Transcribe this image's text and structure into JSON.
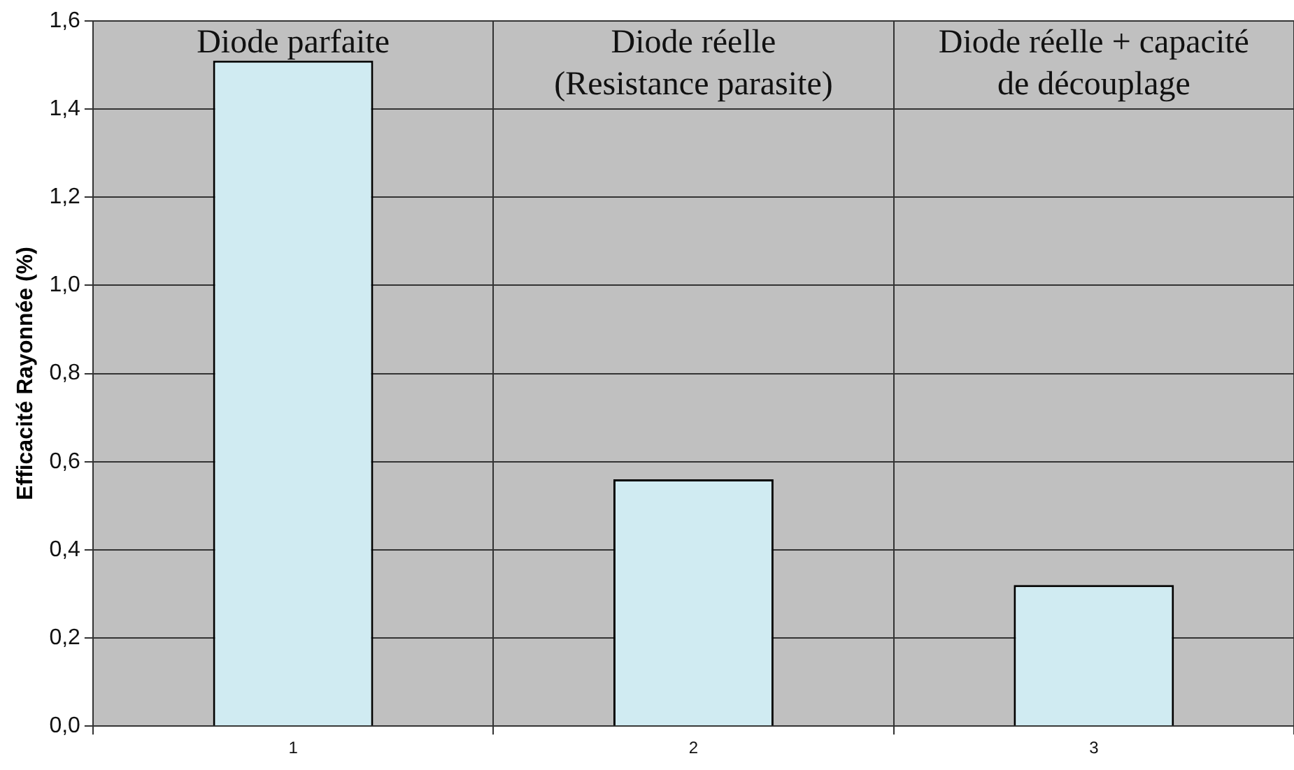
{
  "chart_data": {
    "type": "bar",
    "ylabel": "Efficacité Rayonnée (%)",
    "categories": [
      "1",
      "2",
      "3"
    ],
    "values": [
      1.51,
      0.56,
      0.32
    ],
    "color": "#d0ebf2",
    "ylim": [
      0,
      1.6
    ],
    "yticks": [
      {
        "value": 0,
        "label": "0,0"
      },
      {
        "value": 0.2,
        "label": "0,2"
      },
      {
        "value": 0.4,
        "label": "0,4"
      },
      {
        "value": 0.6,
        "label": "0,6"
      },
      {
        "value": 0.8,
        "label": "0,8"
      },
      {
        "value": 1.0,
        "label": "1,0"
      },
      {
        "value": 1.2,
        "label": "1,2"
      },
      {
        "value": 1.4,
        "label": "1,4"
      },
      {
        "value": 1.6,
        "label": "1,6"
      }
    ],
    "grid": true,
    "annotations": [
      "Diode parfaite",
      "Diode réelle\n(Resistance parasite)",
      "Diode réelle + capacité\nde découplage"
    ]
  }
}
